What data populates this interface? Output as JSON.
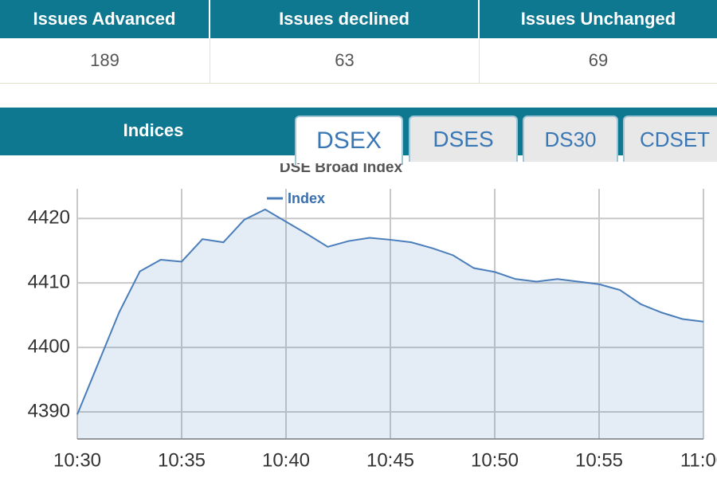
{
  "table": {
    "headers": [
      "Issues Advanced",
      "Issues declined",
      "Issues Unchanged"
    ],
    "rows": [
      [
        189,
        63,
        69
      ]
    ]
  },
  "tabs": {
    "label": "Indices",
    "items": [
      "DSEX",
      "DSES",
      "DS30",
      "CDSET"
    ]
  },
  "chart_data": {
    "type": "line",
    "title": "DSE Broad Index",
    "x": [
      "10:30",
      "10:31",
      "10:32",
      "10:33",
      "10:34",
      "10:35",
      "10:36",
      "10:37",
      "10:38",
      "10:39",
      "10:40",
      "10:41",
      "10:42",
      "10:43",
      "10:44",
      "10:45",
      "10:46",
      "10:47",
      "10:48",
      "10:49",
      "10:50",
      "10:51",
      "10:52",
      "10:53",
      "10:54",
      "10:55",
      "10:56",
      "10:57",
      "10:58",
      "10:59",
      "11:00"
    ],
    "series": [
      {
        "name": "Index",
        "color": "#4a7ebb",
        "values": [
          4389.6,
          4397.5,
          4405.4,
          4411.8,
          4413.6,
          4413.3,
          4416.8,
          4416.3,
          4419.8,
          4421.4,
          4419.5,
          4417.6,
          4415.6,
          4416.5,
          4417.0,
          4416.7,
          4416.3,
          4415.4,
          4414.3,
          4412.3,
          4411.7,
          4410.6,
          4410.2,
          4410.6,
          4410.2,
          4409.8,
          4408.9,
          4406.7,
          4405.4,
          4404.4,
          4404.0
        ]
      }
    ],
    "ylim": [
      4385.8,
      4424.6
    ],
    "yticks": [
      4390,
      4400,
      4410,
      4420
    ],
    "xticks": [
      "10:30",
      "10:35",
      "10:40",
      "10:45",
      "10:50",
      "10:55",
      "11:00"
    ],
    "grid": true
  }
}
